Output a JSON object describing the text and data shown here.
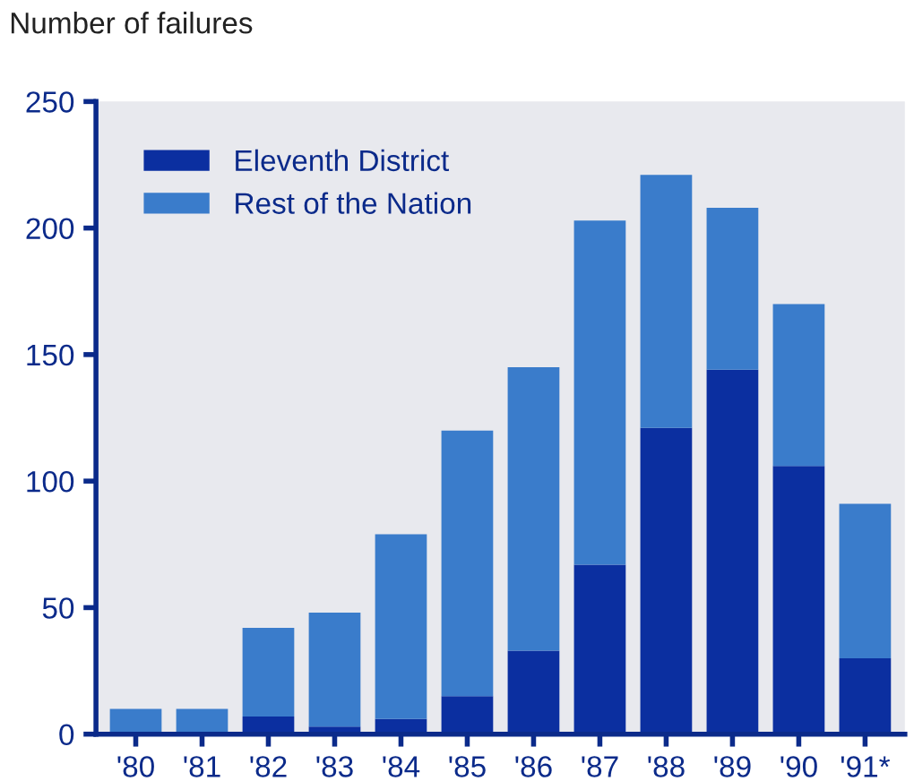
{
  "chart_data": {
    "type": "bar",
    "ylabel": "Number of failures",
    "stacked": true,
    "categories": [
      "'80",
      "'81",
      "'82",
      "'83",
      "'84",
      "'85",
      "'86",
      "'87",
      "'88",
      "'89",
      "'90",
      "'91*"
    ],
    "series": [
      {
        "name": "Eleventh District",
        "color": "#0b2fa0",
        "values": [
          0,
          0,
          7,
          3,
          6,
          15,
          33,
          67,
          121,
          144,
          106,
          30
        ]
      },
      {
        "name": "Rest of the Nation",
        "color": "#3a7ccb",
        "values": [
          10,
          10,
          35,
          45,
          73,
          105,
          112,
          136,
          100,
          64,
          64,
          61
        ]
      }
    ],
    "ylim": [
      0,
      250
    ],
    "yticks": [
      0,
      50,
      100,
      150,
      200,
      250
    ],
    "grid": false,
    "legend": "top left"
  }
}
